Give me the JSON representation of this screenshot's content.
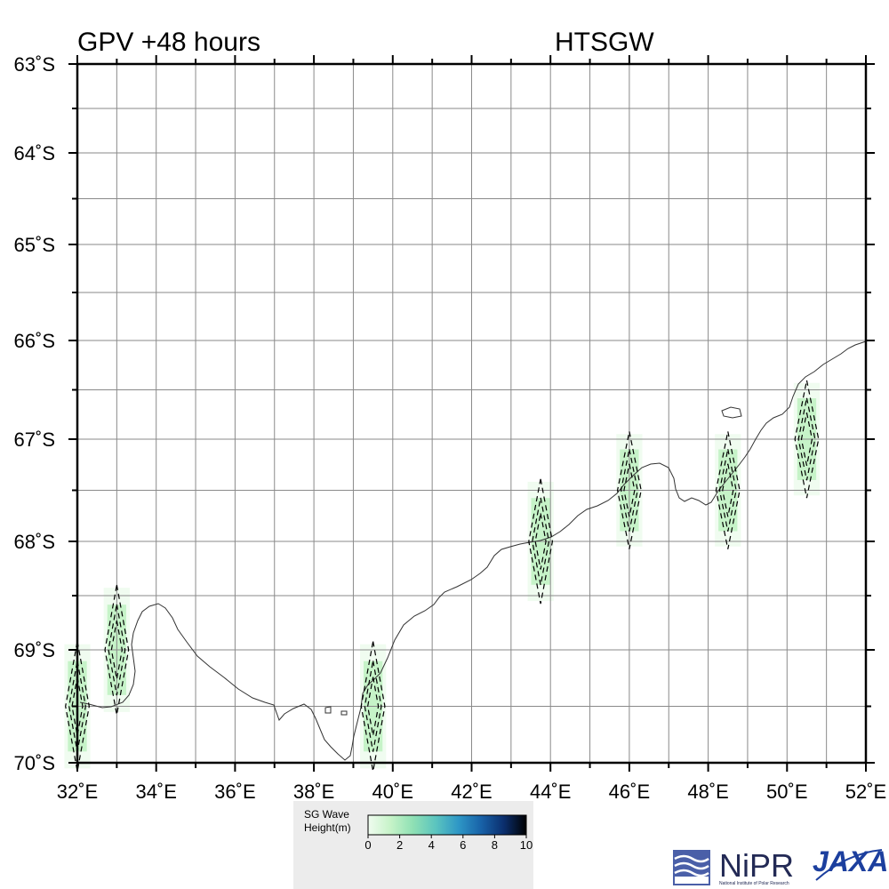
{
  "header": {
    "left_title": "GPV +48 hours",
    "right_title": "HTSGW"
  },
  "map": {
    "lon_range": [
      32,
      52
    ],
    "lat_range": [
      -70,
      -63
    ],
    "lon_major_ticks": [
      32,
      34,
      36,
      38,
      40,
      42,
      44,
      46,
      48,
      50,
      52
    ],
    "lon_tick_labels": [
      "32˚E",
      "34˚E",
      "36˚E",
      "38˚E",
      "40˚E",
      "42˚E",
      "44˚E",
      "46˚E",
      "48˚E",
      "50˚E",
      "52˚E"
    ],
    "lat_major_ticks": [
      -63,
      -64,
      -65,
      -66,
      -67,
      -68,
      -69,
      -70
    ],
    "lat_tick_labels": [
      "63˚S",
      "64˚S",
      "65˚S",
      "66˚S",
      "67˚S",
      "68˚S",
      "69˚S",
      "70˚S"
    ],
    "grid": true,
    "grid_step_degrees": 1,
    "coastline_color": "#333333",
    "contour_style": "dashed",
    "wave_cells": [
      {
        "lon": 32.0,
        "lat": -69.5,
        "height_m": 0.8
      },
      {
        "lon": 33.0,
        "lat": -69.0,
        "height_m": 0.8
      },
      {
        "lon": 39.5,
        "lat": -69.5,
        "height_m": 0.8
      },
      {
        "lon": 43.75,
        "lat": -68.0,
        "height_m": 1.0
      },
      {
        "lon": 46.0,
        "lat": -67.5,
        "height_m": 0.8
      },
      {
        "lon": 48.5,
        "lat": -67.5,
        "height_m": 0.8
      },
      {
        "lon": 50.5,
        "lat": -67.0,
        "height_m": 0.8
      }
    ]
  },
  "legend": {
    "label_line1": "SG Wave",
    "label_line2": "Height(m)",
    "ticks": [
      "0",
      "2",
      "4",
      "6",
      "8",
      "10"
    ],
    "colors": [
      "#f0fcf0",
      "#c6f3c8",
      "#8ee0b4",
      "#5bc4bf",
      "#2e97c6",
      "#1862a8",
      "#0b2f6e",
      "#000000"
    ]
  },
  "logos": {
    "nipr_text": "NiPR",
    "nipr_sub": "National Institute of Polar Research",
    "jaxa_text": "JAXA"
  }
}
